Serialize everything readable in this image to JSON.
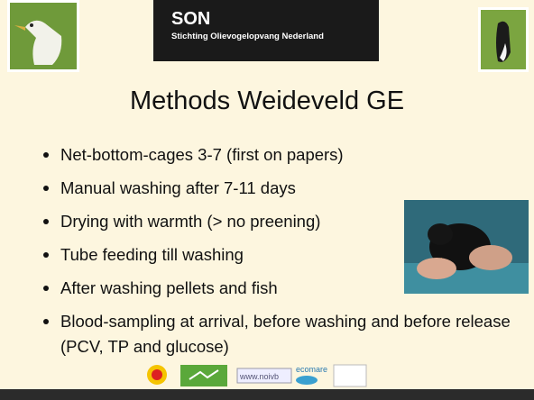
{
  "header": {
    "logo_title": "SON",
    "logo_subtitle": "Stichting Olievogelopvang Nederland"
  },
  "title": "Methods Weideveld GE",
  "bullets": [
    "Net-bottom-cages 3-7 (first on papers)",
    "Manual washing after 7-11 days",
    "Drying with warmth (> no preening)",
    "Tube feeding till washing",
    "After washing pellets and fish",
    "Blood-sampling at arrival, before washing and before release (PCV, TP and glucose)"
  ],
  "footer_logos": [
    "www.noivb",
    "ecomare"
  ]
}
